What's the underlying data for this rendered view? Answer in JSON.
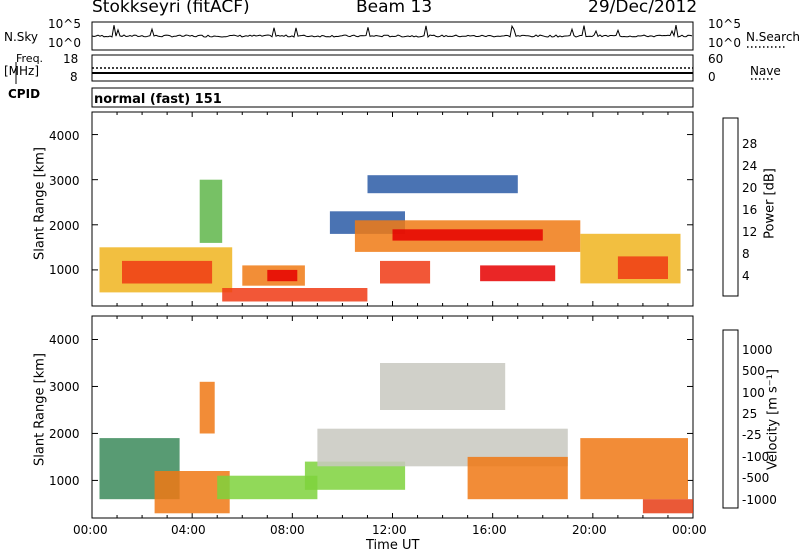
{
  "header": {
    "station": "Stokkseyri (fitACF)",
    "beam": "Beam 13",
    "date": "29/Dec/2012"
  },
  "side_labels": {
    "nsky": "N.Sky",
    "freq": "Freq.",
    "mhz": "[MHz]",
    "cpid": "CPID",
    "nsearch": "N.Search",
    "nave": "Nave"
  },
  "noise_panel": {
    "left_ticks": [
      "10^5",
      "10^0"
    ],
    "right_ticks": [
      "10^5",
      "10^0"
    ]
  },
  "freq_panel": {
    "left_ticks": [
      "18",
      "8"
    ],
    "right_ticks": [
      "60",
      "0"
    ]
  },
  "cpid_text": "normal (fast) 151",
  "colors": {
    "power": [
      "#1424e6",
      "#2a5aa6",
      "#3c8a5a",
      "#5fb64a",
      "#f0b41e",
      "#f07a14",
      "#f03a14",
      "#e60000"
    ],
    "velocity": [
      "#1f3ca6",
      "#2e5e8c",
      "#3b8a5a",
      "#7ed23c",
      "#c8c8c0",
      "#f5a028",
      "#f07814",
      "#e63c14",
      "#e60000"
    ]
  },
  "chart_data": [
    {
      "type": "heatmap",
      "name": "power",
      "ylabel": "Slant Range [km]",
      "yticks": [
        "1000",
        "2000",
        "3000",
        "4000"
      ],
      "ylim": [
        200,
        4500
      ],
      "xticks": [
        "00:00",
        "04:00",
        "08:00",
        "12:00",
        "16:00",
        "20:00",
        "00:00"
      ],
      "xlim": [
        0,
        24
      ],
      "colorbar": {
        "label": "Power [dB]",
        "ticks": [
          "4",
          "8",
          "12",
          "16",
          "20",
          "24",
          "28"
        ]
      },
      "regions": [
        {
          "t0": 0.3,
          "t1": 5.6,
          "r0": 500,
          "r1": 1500,
          "level": 16
        },
        {
          "t0": 1.2,
          "t1": 4.8,
          "r0": 700,
          "r1": 1200,
          "level": 26
        },
        {
          "t0": 4.3,
          "t1": 5.2,
          "r0": 1600,
          "r1": 3000,
          "level": 12
        },
        {
          "t0": 5.2,
          "t1": 11.0,
          "r0": 300,
          "r1": 600,
          "level": 24
        },
        {
          "t0": 6.0,
          "t1": 8.5,
          "r0": 650,
          "r1": 1100,
          "level": 20
        },
        {
          "t0": 7.0,
          "t1": 8.2,
          "r0": 750,
          "r1": 1000,
          "level": 28
        },
        {
          "t0": 9.5,
          "t1": 12.5,
          "r0": 1800,
          "r1": 2300,
          "level": 6
        },
        {
          "t0": 10.5,
          "t1": 19.5,
          "r0": 1400,
          "r1": 2100,
          "level": 20
        },
        {
          "t0": 12.0,
          "t1": 18.0,
          "r0": 1650,
          "r1": 1900,
          "level": 28
        },
        {
          "t0": 11.5,
          "t1": 13.5,
          "r0": 700,
          "r1": 1200,
          "level": 26
        },
        {
          "t0": 15.5,
          "t1": 18.5,
          "r0": 750,
          "r1": 1100,
          "level": 28
        },
        {
          "t0": 11.0,
          "t1": 17.0,
          "r0": 2700,
          "r1": 3100,
          "level": 4
        },
        {
          "t0": 19.5,
          "t1": 23.5,
          "r0": 700,
          "r1": 1800,
          "level": 16
        },
        {
          "t0": 21.0,
          "t1": 23.0,
          "r0": 800,
          "r1": 1300,
          "level": 26
        }
      ]
    },
    {
      "type": "heatmap",
      "name": "velocity",
      "ylabel": "Slant Range [km]",
      "yticks": [
        "1000",
        "2000",
        "3000",
        "4000"
      ],
      "ylim": [
        200,
        4500
      ],
      "xticks": [
        "00:00",
        "04:00",
        "08:00",
        "12:00",
        "16:00",
        "20:00",
        "00:00"
      ],
      "xlim": [
        0,
        24
      ],
      "xlabel": "Time UT",
      "colorbar": {
        "label": "Velocity [m s⁻¹]",
        "ticks": [
          "1000",
          "500",
          "100",
          "25",
          "-25",
          "-100",
          "-500",
          "-1000"
        ]
      },
      "regions": [
        {
          "t0": 0.3,
          "t1": 3.5,
          "r0": 600,
          "r1": 1900,
          "level": 2
        },
        {
          "t0": 2.5,
          "t1": 5.5,
          "r0": 300,
          "r1": 1200,
          "level": 6
        },
        {
          "t0": 4.3,
          "t1": 4.9,
          "r0": 2000,
          "r1": 3100,
          "level": 6
        },
        {
          "t0": 5.0,
          "t1": 9.0,
          "r0": 600,
          "r1": 1100,
          "level": 3
        },
        {
          "t0": 8.5,
          "t1": 12.5,
          "r0": 800,
          "r1": 1400,
          "level": 3
        },
        {
          "t0": 9.0,
          "t1": 19.0,
          "r0": 1300,
          "r1": 2100,
          "level": 4
        },
        {
          "t0": 11.5,
          "t1": 16.5,
          "r0": 2500,
          "r1": 3500,
          "level": 4
        },
        {
          "t0": 15.0,
          "t1": 19.0,
          "r0": 600,
          "r1": 1500,
          "level": 6
        },
        {
          "t0": 19.5,
          "t1": 23.8,
          "r0": 600,
          "r1": 1900,
          "level": 6
        },
        {
          "t0": 22.0,
          "t1": 24.0,
          "r0": 300,
          "r1": 600,
          "level": 7
        }
      ]
    }
  ]
}
